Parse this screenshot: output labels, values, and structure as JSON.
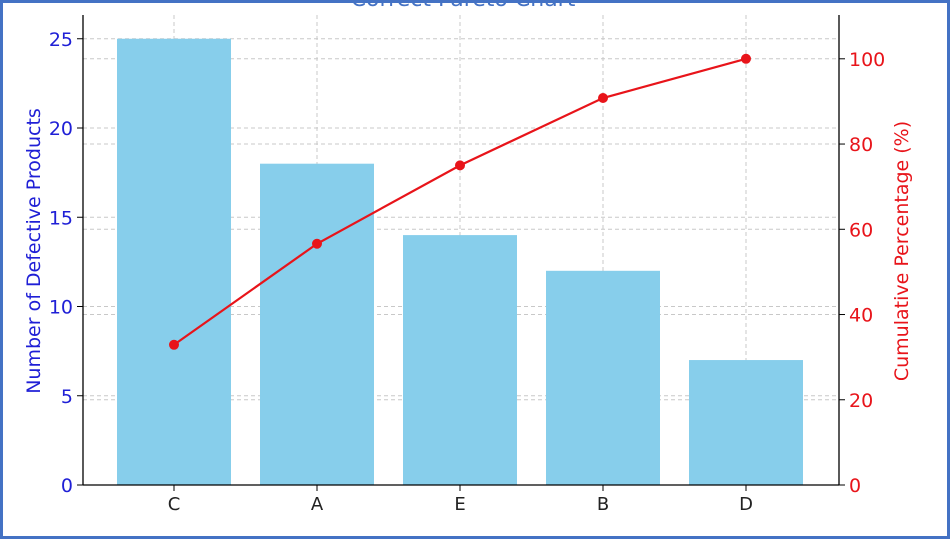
{
  "colors": {
    "bar": "#87ceeb",
    "line": "#e8141a",
    "left_axis": "#1f1fd6",
    "right_axis": "#e8141a",
    "grid": "#c8c8c8",
    "frame": "#4472c4"
  },
  "chart_data": {
    "type": "bar",
    "title": "Correct Pareto Chart",
    "ylabel": "Number of Defective Products",
    "y2label": "Cumulative Percentage (%)",
    "categories": [
      "C",
      "A",
      "E",
      "B",
      "D"
    ],
    "series": [
      {
        "type": "bar",
        "axis": "left",
        "values": [
          25,
          18,
          14,
          12,
          7
        ]
      },
      {
        "type": "line",
        "axis": "right",
        "values": [
          32.9,
          56.6,
          75.0,
          90.8,
          100
        ]
      }
    ],
    "ylim": [
      0,
      26
    ],
    "y2lim": [
      0,
      100
    ],
    "yticks": [
      0,
      5,
      10,
      15,
      20,
      25
    ],
    "y2ticks": [
      0,
      20,
      40,
      60,
      80,
      100
    ],
    "grid": true
  }
}
